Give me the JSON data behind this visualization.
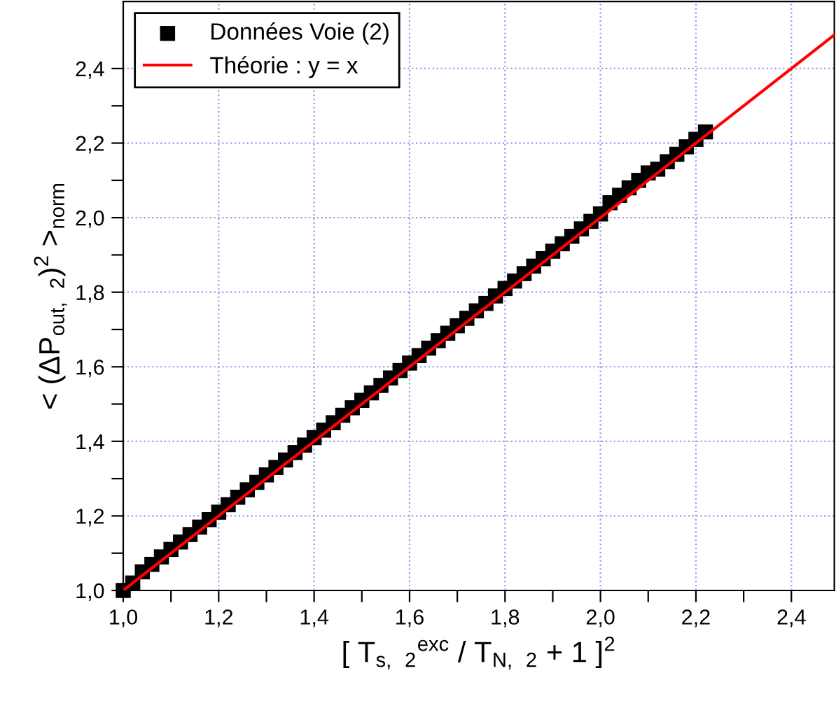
{
  "chart_data": {
    "type": "scatter",
    "xlabel": "[ T$_{s, 2}$$^{exc}$ / T$_{N, 2}$ + 1 ]$^{2}$",
    "ylabel": "< (ΔP$_{out, 2}$)$^{2}$ >$_{norm}$",
    "xlim": [
      1.0,
      2.49
    ],
    "ylim": [
      1.0,
      2.58
    ],
    "xticks": [
      {
        "value": 1.0,
        "label": "1,0"
      },
      {
        "value": 1.1,
        "label": null
      },
      {
        "value": 1.2,
        "label": "1,2"
      },
      {
        "value": 1.3,
        "label": null
      },
      {
        "value": 1.4,
        "label": "1,4"
      },
      {
        "value": 1.5,
        "label": null
      },
      {
        "value": 1.6,
        "label": "1,6"
      },
      {
        "value": 1.7,
        "label": null
      },
      {
        "value": 1.8,
        "label": "1,8"
      },
      {
        "value": 1.9,
        "label": null
      },
      {
        "value": 2.0,
        "label": "2,0"
      },
      {
        "value": 2.1,
        "label": null
      },
      {
        "value": 2.2,
        "label": "2,2"
      },
      {
        "value": 2.3,
        "label": null
      },
      {
        "value": 2.4,
        "label": "2,4"
      }
    ],
    "yticks": [
      {
        "value": 1.0,
        "label": "1,0"
      },
      {
        "value": 1.1,
        "label": null
      },
      {
        "value": 1.2,
        "label": "1,2"
      },
      {
        "value": 1.3,
        "label": null
      },
      {
        "value": 1.4,
        "label": "1,4"
      },
      {
        "value": 1.5,
        "label": null
      },
      {
        "value": 1.6,
        "label": "1,6"
      },
      {
        "value": 1.7,
        "label": null
      },
      {
        "value": 1.8,
        "label": "1,8"
      },
      {
        "value": 1.9,
        "label": null
      },
      {
        "value": 2.0,
        "label": "2,0"
      },
      {
        "value": 2.1,
        "label": null
      },
      {
        "value": 2.2,
        "label": "2,2"
      },
      {
        "value": 2.3,
        "label": null
      },
      {
        "value": 2.4,
        "label": "2,4"
      }
    ],
    "grid": true,
    "legend": "top left",
    "series": [
      {
        "name": "Données Voie (2)",
        "type": "scatter",
        "color": "#000000",
        "marker": "square",
        "x": [
          1.0,
          1.02,
          1.04,
          1.06,
          1.08,
          1.1,
          1.12,
          1.14,
          1.16,
          1.18,
          1.2,
          1.22,
          1.24,
          1.26,
          1.28,
          1.3,
          1.32,
          1.34,
          1.36,
          1.38,
          1.4,
          1.42,
          1.44,
          1.46,
          1.48,
          1.5,
          1.52,
          1.54,
          1.56,
          1.58,
          1.6,
          1.62,
          1.64,
          1.66,
          1.68,
          1.7,
          1.72,
          1.74,
          1.76,
          1.78,
          1.8,
          1.82,
          1.84,
          1.86,
          1.88,
          1.9,
          1.92,
          1.94,
          1.96,
          1.98,
          2.0,
          2.02,
          2.04,
          2.06,
          2.08,
          2.1,
          2.12,
          2.14,
          2.16,
          2.18,
          2.2,
          2.22
        ],
        "values": [
          1.0,
          1.02,
          1.05,
          1.07,
          1.09,
          1.11,
          1.13,
          1.15,
          1.17,
          1.19,
          1.21,
          1.23,
          1.25,
          1.27,
          1.29,
          1.31,
          1.33,
          1.35,
          1.37,
          1.39,
          1.41,
          1.43,
          1.45,
          1.47,
          1.49,
          1.51,
          1.53,
          1.55,
          1.57,
          1.59,
          1.61,
          1.63,
          1.65,
          1.67,
          1.69,
          1.71,
          1.73,
          1.75,
          1.77,
          1.79,
          1.81,
          1.83,
          1.85,
          1.87,
          1.89,
          1.91,
          1.93,
          1.95,
          1.97,
          1.99,
          2.01,
          2.04,
          2.06,
          2.08,
          2.1,
          2.12,
          2.13,
          2.15,
          2.17,
          2.19,
          2.21,
          2.23
        ]
      },
      {
        "name": "Théorie : y = x",
        "type": "line",
        "color": "#ff0000",
        "marker": "none",
        "line_style": "solid",
        "x": [
          1.0,
          2.49
        ],
        "values": [
          1.0,
          2.49
        ]
      }
    ]
  }
}
